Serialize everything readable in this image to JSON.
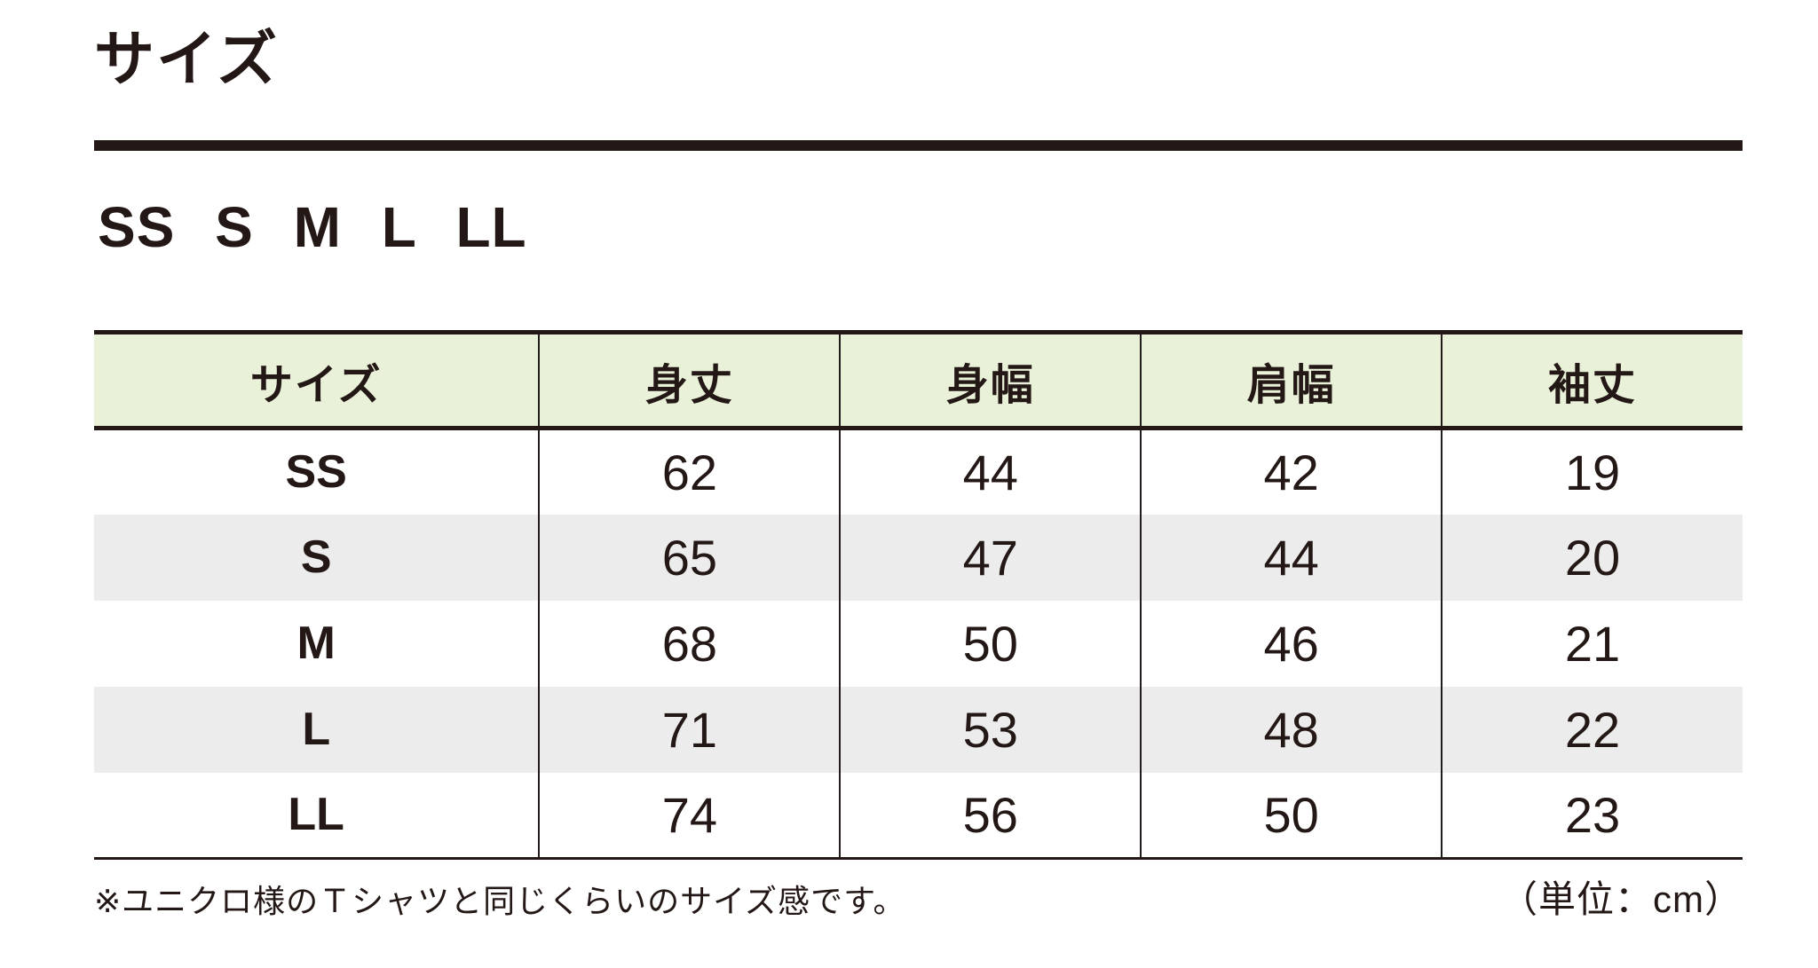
{
  "theme": {
    "ink": "#231815",
    "line": "#221d1a",
    "header-bg": "#eaf1d9",
    "alt-row-bg": "#ececec",
    "page-bg": "#ffffff"
  },
  "title": "サイズ",
  "size_lineup": "SS S M L LL",
  "table": {
    "columns": [
      "サイズ",
      "身丈",
      "身幅",
      "肩幅",
      "袖丈"
    ],
    "rows": [
      {
        "size": "SS",
        "values": [
          "62",
          "44",
          "42",
          "19"
        ]
      },
      {
        "size": "S",
        "values": [
          "65",
          "47",
          "44",
          "20"
        ]
      },
      {
        "size": "M",
        "values": [
          "68",
          "50",
          "46",
          "21"
        ]
      },
      {
        "size": "L",
        "values": [
          "71",
          "53",
          "48",
          "22"
        ]
      },
      {
        "size": "LL",
        "values": [
          "74",
          "56",
          "50",
          "23"
        ]
      }
    ]
  },
  "footer": {
    "note": "※ユニクロ様のＴシャツと同じくらいのサイズ感です。",
    "unit": "（単位：cm）"
  },
  "chart_data": {
    "type": "table",
    "title": "サイズ",
    "categories": [
      "身丈",
      "身幅",
      "肩幅",
      "袖丈"
    ],
    "series": [
      {
        "name": "SS",
        "values": [
          62,
          44,
          42,
          19
        ]
      },
      {
        "name": "S",
        "values": [
          65,
          47,
          44,
          20
        ]
      },
      {
        "name": "M",
        "values": [
          68,
          50,
          46,
          21
        ]
      },
      {
        "name": "L",
        "values": [
          71,
          53,
          48,
          22
        ]
      },
      {
        "name": "LL",
        "values": [
          74,
          56,
          50,
          23
        ]
      }
    ],
    "unit": "cm"
  }
}
